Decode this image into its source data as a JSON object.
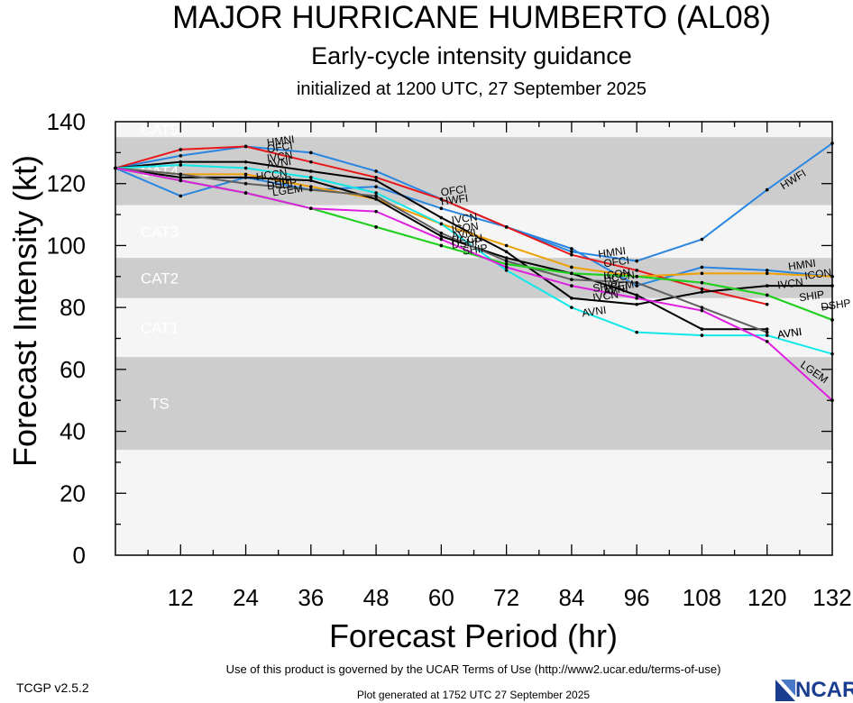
{
  "header": {
    "title": "MAJOR HURRICANE HUMBERTO (AL08)",
    "subtitle": "Early-cycle intensity guidance",
    "initialized": "initialized at 1200 UTC, 27 September 2025"
  },
  "footer": {
    "version": "TCGP v2.5.2",
    "terms": "Use of this product is governed by the UCAR Terms of Use (http://www2.ucar.edu/terms-of-use)",
    "generated": "Plot generated at 1752 UTC   27 September 2025",
    "logo_text": "NCAR"
  },
  "chart_data": {
    "type": "line",
    "xlabel": "Forecast Period (hr)",
    "ylabel": "Forecast Intensity (kt)",
    "xlim": [
      0,
      132
    ],
    "ylim": [
      0,
      140
    ],
    "xticks": [
      12,
      24,
      36,
      48,
      60,
      72,
      84,
      96,
      108,
      120,
      132
    ],
    "yticks": [
      0,
      20,
      40,
      60,
      80,
      100,
      120,
      140
    ],
    "grid": false,
    "bands": [
      {
        "label": "CAT5",
        "from": 135,
        "to": 140,
        "shade": "light"
      },
      {
        "label": "CAT4",
        "from": 113,
        "to": 135,
        "shade": "dark"
      },
      {
        "label": "CAT3",
        "from": 96,
        "to": 113,
        "shade": "light"
      },
      {
        "label": "CAT2",
        "from": 83,
        "to": 96,
        "shade": "dark"
      },
      {
        "label": "CAT1",
        "from": 64,
        "to": 83,
        "shade": "light"
      },
      {
        "label": "TS",
        "from": 34,
        "to": 64,
        "shade": "dark"
      },
      {
        "label": "",
        "from": 0,
        "to": 34,
        "shade": "light"
      }
    ],
    "band_colors": {
      "light": "#f5f5f5",
      "dark": "#cdcdcd"
    },
    "series": [
      {
        "name": "HWFI",
        "color": "#2a86e0",
        "label_at": [
          [
            60,
            113
          ],
          [
            123,
            118
          ]
        ],
        "points": [
          [
            0,
            125
          ],
          [
            12,
            116
          ],
          [
            24,
            122
          ],
          [
            36,
            118
          ],
          [
            48,
            119
          ],
          [
            60,
            112
          ],
          [
            72,
            106
          ],
          [
            84,
            98
          ],
          [
            96,
            95
          ],
          [
            108,
            102
          ],
          [
            120,
            118
          ],
          [
            132,
            133
          ]
        ]
      },
      {
        "name": "HMNI",
        "color": "#2a86e0",
        "label_at": [
          [
            28,
            132
          ],
          [
            89,
            96
          ],
          [
            124,
            92
          ]
        ],
        "points": [
          [
            0,
            125
          ],
          [
            12,
            129
          ],
          [
            24,
            132
          ],
          [
            36,
            130
          ],
          [
            48,
            124
          ],
          [
            60,
            115
          ],
          [
            72,
            106
          ],
          [
            84,
            99
          ],
          [
            96,
            87
          ],
          [
            108,
            93
          ],
          [
            120,
            92
          ],
          [
            132,
            90
          ]
        ]
      },
      {
        "name": "OFCI",
        "color": "#e8171a",
        "label_at": [
          [
            28,
            130
          ],
          [
            60,
            116
          ],
          [
            90,
            93
          ]
        ],
        "points": [
          [
            0,
            125
          ],
          [
            12,
            131
          ],
          [
            24,
            132
          ],
          [
            36,
            127
          ],
          [
            48,
            122
          ],
          [
            60,
            115
          ],
          [
            72,
            106
          ],
          [
            84,
            97
          ],
          [
            96,
            92
          ],
          [
            108,
            86
          ],
          [
            120,
            81
          ]
        ]
      },
      {
        "name": "IVCN",
        "color": "#000000",
        "label_at": [
          [
            28,
            127
          ],
          [
            62,
            107
          ],
          [
            88,
            82
          ],
          [
            122,
            86
          ]
        ],
        "points": [
          [
            0,
            125
          ],
          [
            12,
            127
          ],
          [
            24,
            127
          ],
          [
            36,
            124
          ],
          [
            48,
            121
          ],
          [
            60,
            109
          ],
          [
            72,
            98
          ],
          [
            84,
            83
          ],
          [
            96,
            81
          ],
          [
            108,
            85
          ],
          [
            120,
            87
          ],
          [
            132,
            87
          ]
        ]
      },
      {
        "name": "ICON",
        "color": "#f0a000",
        "label_at": [
          [
            62,
            104
          ],
          [
            90,
            89
          ],
          [
            127,
            89
          ]
        ],
        "points": [
          [
            0,
            125
          ],
          [
            12,
            123
          ],
          [
            24,
            123
          ],
          [
            36,
            119
          ],
          [
            48,
            115
          ],
          [
            60,
            107
          ],
          [
            72,
            100
          ],
          [
            84,
            93
          ],
          [
            96,
            90
          ],
          [
            108,
            91
          ],
          [
            120,
            91
          ],
          [
            132,
            90
          ]
        ]
      },
      {
        "name": "AVNI",
        "color": "#000000",
        "label_at": [
          [
            28,
            125
          ],
          [
            90,
            84
          ],
          [
            122,
            70
          ]
        ],
        "points": [
          [
            0,
            125
          ],
          [
            12,
            122
          ],
          [
            24,
            122
          ],
          [
            36,
            121
          ],
          [
            48,
            115
          ],
          [
            60,
            103
          ],
          [
            72,
            96
          ],
          [
            84,
            91
          ],
          [
            96,
            84
          ],
          [
            108,
            73
          ],
          [
            120,
            73
          ]
        ]
      },
      {
        "name": "AVNI",
        "color": "#10e8e8",
        "label_at": [
          [
            62,
            102
          ],
          [
            86,
            77
          ],
          [
            122,
            70
          ]
        ],
        "points": [
          [
            0,
            125
          ],
          [
            12,
            126
          ],
          [
            24,
            125
          ],
          [
            36,
            122
          ],
          [
            48,
            117
          ],
          [
            60,
            107
          ],
          [
            72,
            92
          ],
          [
            84,
            80
          ],
          [
            96,
            72
          ],
          [
            108,
            71
          ],
          [
            120,
            71
          ],
          [
            132,
            65
          ]
        ]
      },
      {
        "name": "HCCN",
        "color": "#606060",
        "label_at": [
          [
            26,
            121
          ],
          [
            62,
            100
          ],
          [
            90,
            88
          ]
        ],
        "points": [
          [
            0,
            125
          ],
          [
            12,
            123
          ],
          [
            24,
            120
          ],
          [
            36,
            118
          ],
          [
            48,
            116
          ],
          [
            60,
            104
          ],
          [
            72,
            95
          ],
          [
            84,
            89
          ],
          [
            96,
            88
          ],
          [
            108,
            80
          ],
          [
            120,
            72
          ]
        ]
      },
      {
        "name": "SHIP",
        "color": "#22d022",
        "label_at": [
          [
            28,
            119
          ],
          [
            64,
            97
          ],
          [
            88,
            85
          ],
          [
            126,
            82
          ]
        ],
        "points": [
          [
            0,
            125
          ],
          [
            12,
            121
          ],
          [
            24,
            117
          ],
          [
            36,
            112
          ],
          [
            48,
            106
          ],
          [
            60,
            100
          ],
          [
            72,
            94
          ],
          [
            84,
            91
          ],
          [
            96,
            90
          ],
          [
            108,
            88
          ],
          [
            120,
            84
          ],
          [
            132,
            76
          ]
        ]
      },
      {
        "name": "DSHP",
        "color": "#22d022",
        "label_at": [
          [
            28,
            118
          ],
          [
            62,
            99
          ],
          [
            130,
            79
          ]
        ],
        "points": [
          [
            0,
            125
          ],
          [
            12,
            121
          ],
          [
            24,
            117
          ],
          [
            36,
            112
          ],
          [
            48,
            106
          ],
          [
            60,
            100
          ],
          [
            72,
            94
          ],
          [
            84,
            91
          ],
          [
            96,
            90
          ],
          [
            108,
            88
          ],
          [
            120,
            84
          ],
          [
            132,
            76
          ]
        ]
      },
      {
        "name": "LGEM",
        "color": "#e020e0",
        "label_at": [
          [
            29,
            116
          ],
          [
            90,
            85
          ],
          [
            126,
            61
          ]
        ],
        "points": [
          [
            0,
            125
          ],
          [
            12,
            121
          ],
          [
            24,
            117
          ],
          [
            36,
            112
          ],
          [
            48,
            111
          ],
          [
            60,
            102
          ],
          [
            72,
            93
          ],
          [
            84,
            87
          ],
          [
            96,
            83
          ],
          [
            108,
            79
          ],
          [
            120,
            69
          ],
          [
            132,
            50
          ]
        ]
      }
    ]
  }
}
